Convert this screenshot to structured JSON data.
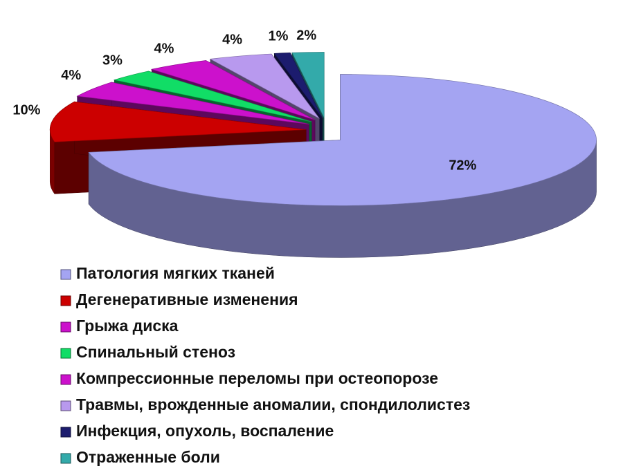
{
  "chart_data": {
    "type": "pie",
    "categories": [
      "Патология мягких тканей",
      "Дегенеративные изменения",
      "Грыжа диска",
      "Спинальный стеноз",
      "Компрессионные переломы при остеопорозе",
      "Травмы, врожденные аномалии, спондилолистез",
      "Инфекция, опухоль, воспаление",
      "Отраженные боли"
    ],
    "values": [
      72,
      10,
      4,
      3,
      4,
      4,
      1,
      2
    ],
    "value_labels": [
      "72%",
      "10%",
      "4%",
      "3%",
      "4%",
      "4%",
      "1%",
      "2%"
    ],
    "colors": [
      "#a4a4f2",
      "#cc0000",
      "#cc11cc",
      "#11dd66",
      "#cc11cc",
      "#b899ee",
      "#1c1c6e",
      "#33aaaa"
    ]
  }
}
